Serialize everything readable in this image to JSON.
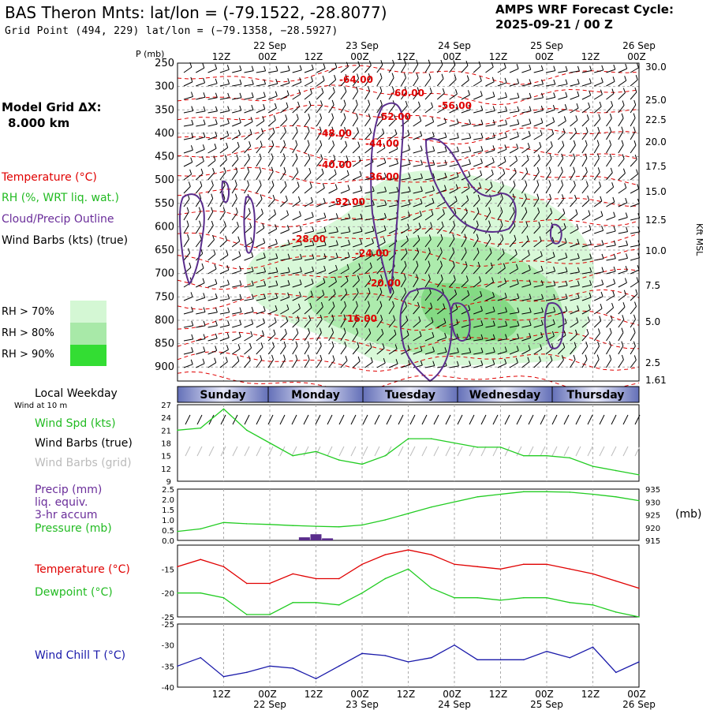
{
  "header": {
    "title": "BAS Theron Mnts:  lat/lon = (-79.1522, -28.8077)",
    "grid_point": "Grid Point (494, 229) lat/lon = (−79.1358, −28.5927)",
    "cycle_line1": "AMPS WRF Forecast Cycle:",
    "cycle_line2": "2025-09-21 / 00  Z"
  },
  "left_labels": {
    "model_grid": "Model Grid ΔX:",
    "model_grid_value": "8.000 km",
    "temperature": "Temperature (°C)",
    "rh": "RH (%, WRT liq. wat.)",
    "cloud": "Cloud/Precip Outline",
    "wind_barbs": "Wind Barbs (kts) (true)",
    "rh70": "RH > 70%",
    "rh80": "RH > 80%",
    "rh90": "RH > 90%",
    "local_weekday": "Local Weekday",
    "wind_10m": "Wind at 10 m",
    "wind_spd": "Wind Spd (kts)",
    "wind_barbs_true": "Wind Barbs (true)",
    "wind_barbs_grid": "Wind Barbs (grid)",
    "precip1": "Precip (mm)",
    "precip2": "liq. equiv.",
    "precip3": "3-hr accum",
    "pressure": "Pressure (mb)",
    "pressure_unit": "(mb)",
    "temperature2": "Temperature (°C)",
    "dewpoint": "Dewpoint (°C)",
    "windchill": "Wind Chill T (°C)",
    "p_axis_title": "P (mb)",
    "kft_label": "Kft MSL"
  },
  "colors": {
    "temp_red": "#e00000",
    "rh_green": "#22cc22",
    "cloud_purple": "#5a2d8c",
    "blue": "#1a1aaa",
    "grid_gray": "#aaaaaa",
    "rh70": "#d4f7d4",
    "rh80": "#a8e9a8",
    "rh90": "#33dd33",
    "day_bar": "#6470b8"
  },
  "chart_data": [
    {
      "type": "cross-section",
      "title": "Time-height cross section",
      "time_hours": [
        0,
        12,
        24,
        36,
        48,
        60,
        72,
        84,
        96,
        108,
        120
      ],
      "top_time_labels": [
        "12Z",
        "00Z",
        "12Z",
        "00Z",
        "12Z",
        "00Z",
        "12Z",
        "00Z",
        "12Z",
        "00Z"
      ],
      "top_date_labels": [
        "22 Sep",
        "23 Sep",
        "24 Sep",
        "25 Sep",
        "26 Sep"
      ],
      "pressure_ticks": [
        "250",
        "300",
        "350",
        "400",
        "450",
        "500",
        "550",
        "600",
        "650",
        "700",
        "750",
        "800",
        "850",
        "900"
      ],
      "height_kft_ticks": [
        "30.0",
        "25.0",
        "22.5",
        "20.0",
        "17.5",
        "15.0",
        "12.5",
        "10.0",
        "7.5",
        "5.0",
        "2.5",
        "1.61"
      ],
      "temperature_contour_labels": [
        "-64.00",
        "-60.00",
        "-56.00",
        "-52.00",
        "-48.00",
        "-44.00",
        "-40.00",
        "-36.00",
        "-32.00",
        "-28.00",
        "-24.00",
        "-20.00",
        "-16.00"
      ],
      "weekdays": [
        "Sunday",
        "Monday",
        "Tuesday",
        "Wednesday",
        "Thursday"
      ]
    },
    {
      "type": "line",
      "title": "Wind Spd (kts)",
      "y_ticks": [
        "27",
        "24",
        "21",
        "18",
        "15",
        "12",
        "9"
      ],
      "ylim": [
        9,
        27
      ],
      "x_hours": [
        0,
        6,
        12,
        18,
        24,
        30,
        36,
        42,
        48,
        54,
        60,
        66,
        72,
        78,
        84,
        90,
        96,
        102,
        108,
        114,
        120
      ],
      "values": [
        21,
        21.5,
        26,
        21,
        18,
        15,
        16,
        14,
        13,
        15,
        19,
        19,
        18,
        17,
        17,
        15,
        15,
        14.5,
        12.5,
        11.5,
        10.5
      ]
    },
    {
      "type": "line+bar",
      "title": "Precip / Pressure",
      "precip_ticks": [
        "2.5",
        "2.0",
        "1.5",
        "1.0",
        "0.5",
        "0.0"
      ],
      "pressure_ticks": [
        "935",
        "930",
        "925",
        "920",
        "915"
      ],
      "precip_ylim": [
        0,
        2.5
      ],
      "pressure_ylim": [
        915,
        935
      ],
      "precip_x_hours": [
        33,
        36,
        39
      ],
      "precip_values": [
        0.15,
        0.3,
        0.1
      ],
      "pressure_x_hours": [
        0,
        6,
        12,
        18,
        24,
        30,
        36,
        42,
        48,
        54,
        60,
        66,
        72,
        78,
        84,
        90,
        96,
        102,
        108,
        114,
        120
      ],
      "pressure_values": [
        918.5,
        919.5,
        922,
        921.5,
        921.2,
        920.8,
        920.5,
        920.3,
        921,
        923,
        925.5,
        928,
        930,
        932,
        933,
        934,
        934,
        933.8,
        933,
        932,
        930.5
      ]
    },
    {
      "type": "line",
      "title": "Temperature / Dewpoint",
      "y_ticks": [
        "-15",
        "-20",
        "-25"
      ],
      "ylim": [
        -25,
        -10
      ],
      "x_hours": [
        0,
        6,
        12,
        18,
        24,
        30,
        36,
        42,
        48,
        54,
        60,
        66,
        72,
        78,
        84,
        90,
        96,
        102,
        108,
        114,
        120
      ],
      "series": [
        {
          "name": "Temperature",
          "values": [
            -14.5,
            -13,
            -14.5,
            -18,
            -18,
            -16,
            -17,
            -17,
            -14,
            -12,
            -11,
            -12,
            -14,
            -14.5,
            -15,
            -14,
            -14,
            -15,
            -16,
            -17.5,
            -19
          ]
        },
        {
          "name": "Dewpoint",
          "values": [
            -20,
            -20,
            -21,
            -24.5,
            -24.5,
            -22,
            -22,
            -22.5,
            -20,
            -17,
            -15,
            -19,
            -21,
            -21,
            -21.5,
            -21,
            -21,
            -22,
            -22.5,
            -24,
            -25
          ]
        }
      ]
    },
    {
      "type": "line",
      "title": "Wind Chill T (°C)",
      "y_ticks": [
        "-25",
        "-30",
        "-35",
        "-40"
      ],
      "ylim": [
        -40,
        -25
      ],
      "x_hours": [
        0,
        6,
        12,
        18,
        24,
        30,
        36,
        42,
        48,
        54,
        60,
        66,
        72,
        78,
        84,
        90,
        96,
        102,
        108,
        114,
        120
      ],
      "values": [
        -35,
        -33,
        -37.5,
        -36.5,
        -35,
        -35.5,
        -38,
        -35,
        -32,
        -32.5,
        -34,
        -33,
        -30,
        -33.5,
        -33.5,
        -33.5,
        -31.5,
        -33,
        -30.5,
        -36.5,
        -34
      ],
      "bottom_time_labels": [
        "12Z",
        "00Z",
        "12Z",
        "00Z",
        "12Z",
        "00Z",
        "12Z",
        "00Z",
        "12Z",
        "00Z"
      ],
      "bottom_date_labels": [
        "22 Sep",
        "23 Sep",
        "24 Sep",
        "25 Sep",
        "26 Sep"
      ]
    }
  ]
}
